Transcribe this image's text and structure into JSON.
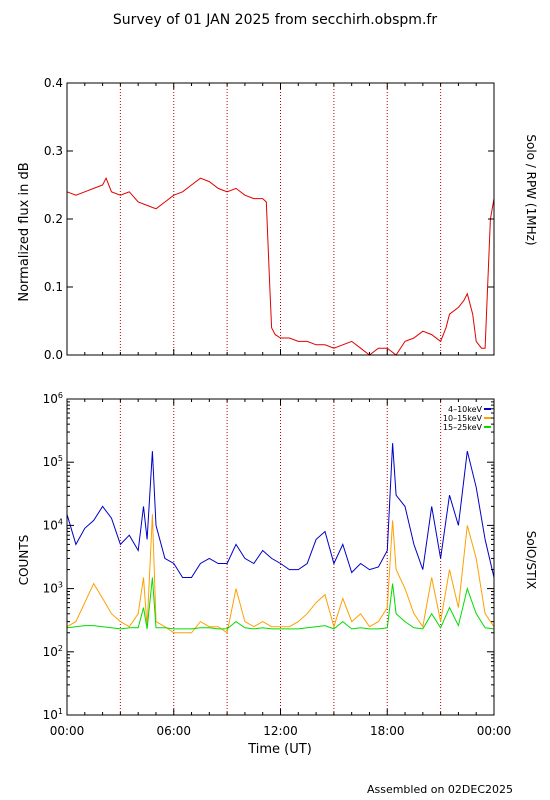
{
  "title": "Survey of 01 JAN 2025 from secchirh.obspm.fr",
  "footer": "Assembled on 02DEC2025",
  "colors": {
    "rpw": "#e00000",
    "stix_4_10": "#0000c8",
    "stix_10_15": "#ffa000",
    "stix_15_25": "#00dd00",
    "hour_markers": "#c00000"
  },
  "chart_data": [
    {
      "type": "line",
      "side_label": "Solo / RPW (1MHz)",
      "ylabel": "Normalized flux in dB",
      "xlabel": "",
      "ylim": [
        0.0,
        0.4
      ],
      "yticks": [
        "0.0",
        "0.1",
        "0.2",
        "0.3",
        "0.4"
      ],
      "xlim_hours": [
        0,
        24
      ],
      "hour_markers": [
        3,
        6,
        9,
        12,
        15,
        18,
        21
      ],
      "grid": false,
      "series": [
        {
          "color": "#e00000",
          "x_hours": [
            0,
            0.5,
            1,
            1.5,
            2,
            2.2,
            2.5,
            3,
            3.5,
            4,
            4.5,
            5,
            5.5,
            6,
            6.5,
            7,
            7.5,
            8,
            8.5,
            9,
            9.5,
            10,
            10.5,
            11,
            11.2,
            11.4,
            11.5,
            11.7,
            12,
            12.5,
            13,
            13.5,
            14,
            14.5,
            15,
            15.5,
            16,
            16.5,
            17,
            17.5,
            18,
            18.5,
            19,
            19.5,
            20,
            20.5,
            21,
            21.3,
            21.5,
            22,
            22.3,
            22.5,
            22.8,
            23,
            23.3,
            23.5,
            23.8,
            24
          ],
          "values": [
            0.24,
            0.235,
            0.24,
            0.245,
            0.25,
            0.26,
            0.24,
            0.235,
            0.24,
            0.225,
            0.22,
            0.215,
            0.225,
            0.235,
            0.24,
            0.25,
            0.26,
            0.255,
            0.245,
            0.24,
            0.245,
            0.235,
            0.23,
            0.23,
            0.225,
            0.1,
            0.04,
            0.03,
            0.025,
            0.025,
            0.02,
            0.02,
            0.015,
            0.015,
            0.01,
            0.015,
            0.02,
            0.01,
            0.0,
            0.01,
            0.01,
            0.0,
            0.02,
            0.025,
            0.035,
            0.03,
            0.02,
            0.04,
            0.06,
            0.07,
            0.08,
            0.09,
            0.06,
            0.02,
            0.01,
            0.01,
            0.2,
            0.23
          ]
        }
      ]
    },
    {
      "type": "line",
      "side_label": "SolO/STIX",
      "ylabel": "COUNTS",
      "xlabel": "Time (UT)",
      "yscale": "log",
      "ylim": [
        10,
        1000000
      ],
      "ytick_powers": [
        "1",
        "2",
        "3",
        "4",
        "5",
        "6"
      ],
      "ytick_base": "10",
      "xlim_hours": [
        0,
        24
      ],
      "xticks": [
        "00:00",
        "06:00",
        "12:00",
        "18:00",
        "00:00"
      ],
      "hour_markers": [
        3,
        6,
        9,
        12,
        15,
        18,
        21
      ],
      "legend": "top-right",
      "grid": false,
      "series": [
        {
          "name": "4–10keV",
          "color": "#0000c8",
          "x_hours": [
            0,
            0.5,
            1,
            1.5,
            2,
            2.5,
            3,
            3.5,
            4,
            4.3,
            4.5,
            4.8,
            5,
            5.5,
            6,
            6.5,
            7,
            7.5,
            8,
            8.5,
            9,
            9.5,
            10,
            10.5,
            11,
            11.5,
            12,
            12.5,
            13,
            13.5,
            14,
            14.5,
            15,
            15.5,
            16,
            16.5,
            17,
            17.5,
            18,
            18.3,
            18.5,
            19,
            19.5,
            20,
            20.5,
            21,
            21.5,
            22,
            22.5,
            23,
            23.5,
            24
          ],
          "values": [
            15000,
            5000,
            9000,
            12000,
            20000,
            13000,
            5000,
            7000,
            4000,
            20000,
            6000,
            150000,
            10000,
            3000,
            2500,
            1500,
            1500,
            2500,
            3000,
            2500,
            2500,
            5000,
            3000,
            2500,
            4000,
            3000,
            2500,
            2000,
            2000,
            2500,
            6000,
            8000,
            2500,
            5000,
            1800,
            2500,
            2000,
            2200,
            4000,
            200000,
            30000,
            20000,
            5000,
            2000,
            20000,
            3000,
            30000,
            10000,
            150000,
            40000,
            6000,
            1500
          ]
        },
        {
          "name": "10–15keV",
          "color": "#ffa000",
          "x_hours": [
            0,
            0.5,
            1,
            1.5,
            2,
            2.5,
            3,
            3.5,
            4,
            4.3,
            4.5,
            4.8,
            5,
            5.5,
            6,
            6.5,
            7,
            7.5,
            8,
            8.5,
            9,
            9.5,
            10,
            10.5,
            11,
            11.5,
            12,
            12.5,
            13,
            13.5,
            14,
            14.5,
            15,
            15.5,
            16,
            16.5,
            17,
            17.5,
            18,
            18.3,
            18.5,
            19,
            19.5,
            20,
            20.5,
            21,
            21.5,
            22,
            22.5,
            23,
            23.5,
            24
          ],
          "values": [
            250,
            300,
            600,
            1200,
            700,
            400,
            300,
            250,
            400,
            1500,
            250,
            15000,
            300,
            250,
            200,
            200,
            200,
            300,
            250,
            250,
            200,
            1000,
            300,
            250,
            300,
            250,
            250,
            250,
            300,
            400,
            600,
            800,
            250,
            700,
            300,
            400,
            250,
            300,
            500,
            12000,
            2000,
            1000,
            400,
            250,
            1500,
            300,
            2000,
            500,
            10000,
            3000,
            400,
            250
          ]
        },
        {
          "name": "15–25keV",
          "color": "#00dd00",
          "x_hours": [
            0,
            0.5,
            1,
            1.5,
            2,
            2.5,
            3,
            3.5,
            4,
            4.3,
            4.5,
            4.8,
            5,
            5.5,
            6,
            6.5,
            7,
            7.5,
            8,
            8.5,
            9,
            9.5,
            10,
            10.5,
            11,
            11.5,
            12,
            12.5,
            13,
            13.5,
            14,
            14.5,
            15,
            15.5,
            16,
            16.5,
            17,
            17.5,
            18,
            18.3,
            18.5,
            19,
            19.5,
            20,
            20.5,
            21,
            21.5,
            22,
            22.5,
            23,
            23.5,
            24
          ],
          "values": [
            240,
            250,
            260,
            260,
            250,
            240,
            230,
            240,
            240,
            500,
            230,
            1500,
            240,
            240,
            230,
            230,
            230,
            240,
            240,
            230,
            230,
            300,
            240,
            230,
            240,
            230,
            230,
            230,
            230,
            240,
            250,
            260,
            230,
            300,
            230,
            240,
            230,
            230,
            240,
            1200,
            400,
            300,
            240,
            230,
            400,
            240,
            500,
            260,
            1000,
            400,
            240,
            230
          ]
        }
      ]
    }
  ]
}
